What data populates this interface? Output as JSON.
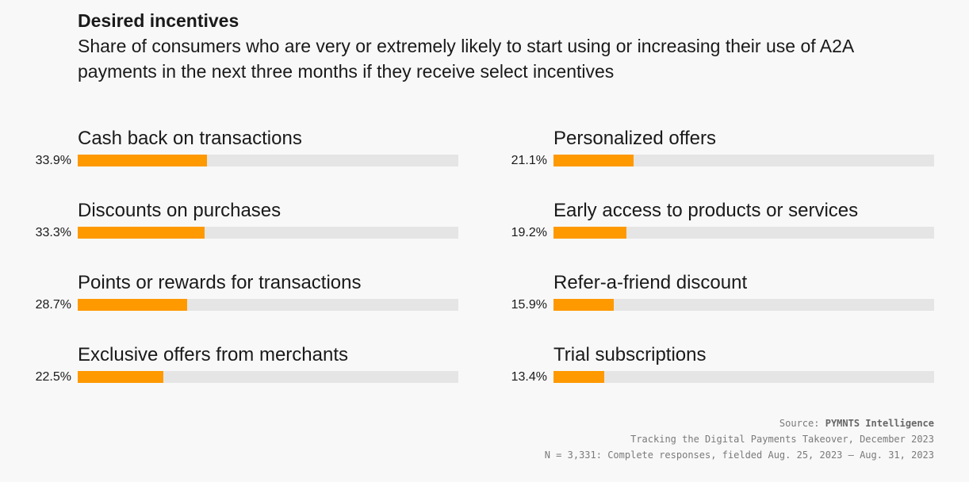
{
  "chart_data": {
    "type": "bar",
    "orientation": "horizontal",
    "title": "Desired incentives",
    "subtitle": "Share of consumers who are very or extremely likely to start using or increasing their use of A2A payments in the next three months if they receive select incentives",
    "categories": [
      "Cash back on transactions",
      "Discounts on purchases",
      "Points or rewards for transactions",
      "Exclusive offers from merchants",
      "Personalized offers",
      "Early access to products or services",
      "Refer-a-friend discount",
      "Trial subscriptions"
    ],
    "values": [
      33.9,
      33.3,
      28.7,
      22.5,
      21.1,
      19.2,
      15.9,
      13.4
    ],
    "value_labels": [
      "33.9%",
      "33.3%",
      "28.7%",
      "22.5%",
      "21.1%",
      "19.2%",
      "15.9%",
      "13.4%"
    ],
    "xlim": [
      0,
      100
    ],
    "bar_color": "#ff9900",
    "track_color": "#e5e5e5",
    "grid": false
  },
  "source": {
    "label": "Source:",
    "org": "PYMNTS Intelligence",
    "report": "Tracking the Digital Payments Takeover, December 2023",
    "sample": "N = 3,331: Complete responses, fielded Aug. 25, 2023 – Aug. 31, 2023"
  }
}
